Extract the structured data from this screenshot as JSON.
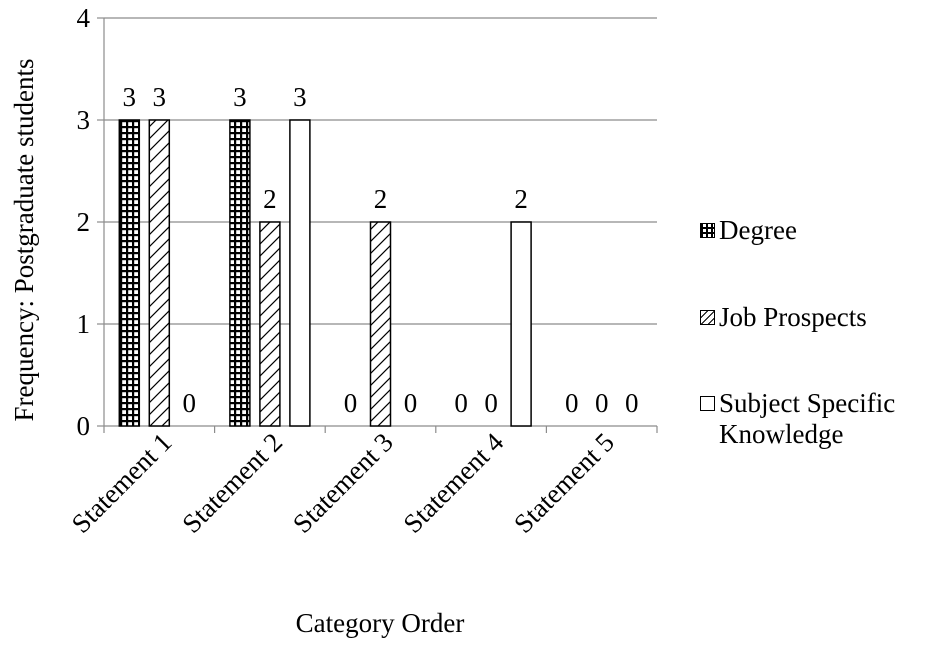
{
  "chart_data": {
    "type": "bar",
    "categories": [
      "Statement 1",
      "Statement 2",
      "Statement 3",
      "Statement 4",
      "Statement 5"
    ],
    "series": [
      {
        "name": "Degree",
        "values": [
          3,
          3,
          0,
          0,
          0
        ],
        "pattern": "grid",
        "color": "#000000"
      },
      {
        "name": "Job Prospects",
        "values": [
          3,
          2,
          2,
          0,
          0
        ],
        "pattern": "diagonal",
        "color": "#000000"
      },
      {
        "name": "Subject Specific Knowledge",
        "values": [
          0,
          3,
          0,
          2,
          0
        ],
        "pattern": "none",
        "color": "#000000"
      }
    ],
    "data_labels": true,
    "xlabel": "Category Order",
    "ylabel": "Frequency: Postgraduate students",
    "ylim": [
      0,
      4
    ],
    "yticks": [
      "0",
      "1",
      "2",
      "3",
      "4"
    ],
    "grid": "horizontal",
    "legend": "right"
  }
}
